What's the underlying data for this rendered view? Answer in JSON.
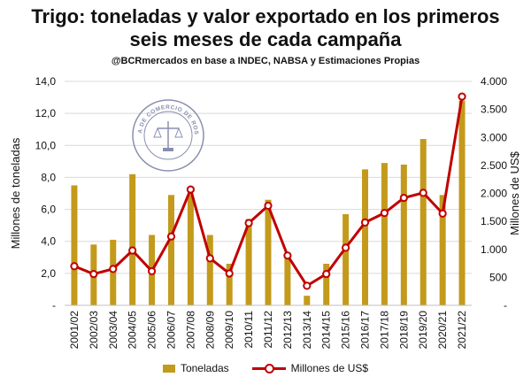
{
  "title_line1": "Trigo: toneladas y valor exportado en los primeros",
  "title_line2": "seis meses de cada campaña",
  "subtitle": "@BCRmercados en base a INDEC, NABSA y Estimaciones Propias",
  "seal_text": "BOLSA DE COMERCIO DE ROSARIO",
  "colors": {
    "bars": "#C39A1B",
    "line": "#C00000",
    "grid": "#D9D9D9"
  },
  "chart_data": {
    "type": "bar+line",
    "categories": [
      "2001/02",
      "2002/03",
      "2003/04",
      "2004/05",
      "2005/06",
      "2006/07",
      "2007/08",
      "2008/09",
      "2009/10",
      "2010/11",
      "2011/12",
      "2012/13",
      "2013/14",
      "2014/15",
      "2015/16",
      "2016/17",
      "2017/18",
      "2018/19",
      "2019/20",
      "2020/21",
      "2021/22"
    ],
    "series": [
      {
        "name": "Toneladas",
        "type": "bar",
        "axis": "left",
        "values": [
          7.5,
          3.8,
          4.1,
          8.2,
          4.4,
          6.9,
          6.9,
          4.4,
          2.6,
          5.4,
          6.6,
          3.1,
          0.6,
          2.6,
          5.7,
          8.5,
          8.9,
          8.8,
          10.4,
          6.9,
          12.8
        ]
      },
      {
        "name": "Millones de US$",
        "type": "line",
        "axis": "right",
        "values": [
          700,
          560,
          650,
          980,
          610,
          1230,
          2070,
          840,
          570,
          1470,
          1780,
          890,
          350,
          560,
          1030,
          1480,
          1650,
          1920,
          2010,
          1640,
          3730
        ]
      }
    ],
    "y_left": {
      "label": "Millones de toneladas",
      "min": 0,
      "max": 14,
      "ticks": [
        "-",
        "2,0",
        "4,0",
        "6,0",
        "8,0",
        "10,0",
        "12,0",
        "14,0"
      ]
    },
    "y_right": {
      "label": "Millones de US$",
      "min": 0,
      "max": 4000,
      "ticks": [
        "-",
        "500",
        "1.000",
        "1.500",
        "2.000",
        "2.500",
        "3.000",
        "3.500",
        "4.000"
      ]
    },
    "grid": true,
    "legend_position": "bottom"
  }
}
